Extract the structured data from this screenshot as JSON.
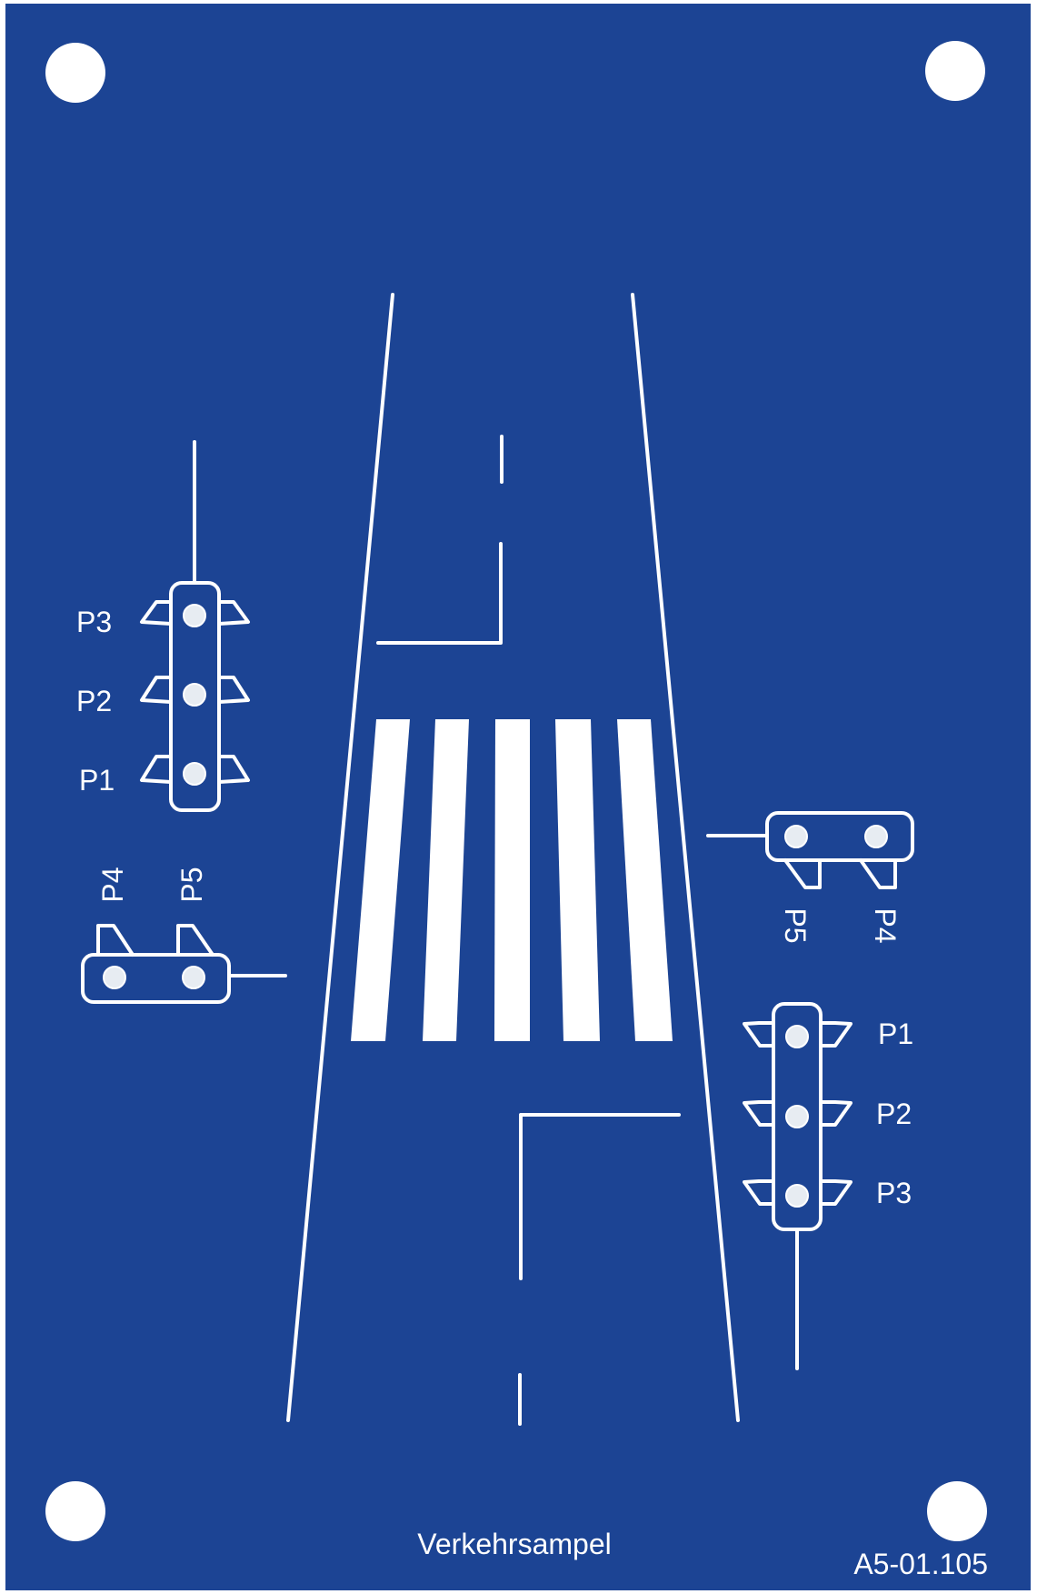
{
  "panel": {
    "title": "Verkehrsampel",
    "part_number": "A5-01.105",
    "background_color": "#1c4494",
    "line_color": "#ffffff"
  },
  "left_vehicle_signal": {
    "labels": [
      "P3",
      "P2",
      "P1"
    ]
  },
  "left_pedestrian_signal": {
    "labels": [
      "P4",
      "P5"
    ]
  },
  "right_pedestrian_signal": {
    "labels": [
      "P5",
      "P4"
    ]
  },
  "right_vehicle_signal": {
    "labels": [
      "P1",
      "P2",
      "P3"
    ]
  }
}
